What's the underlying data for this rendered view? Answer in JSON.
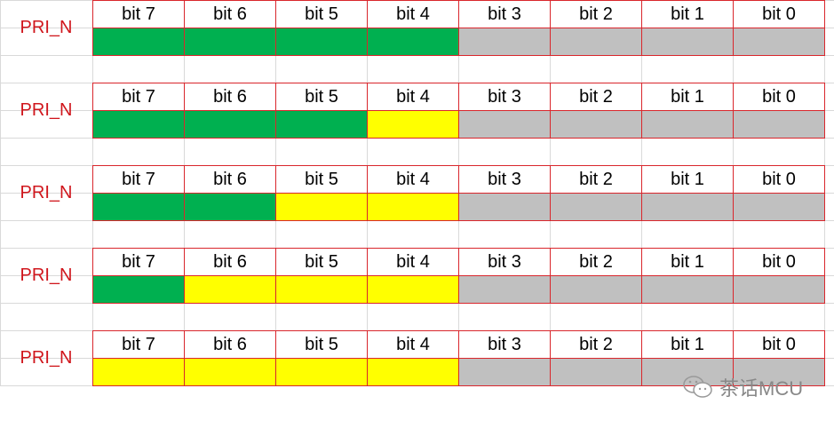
{
  "colors": {
    "green": "#00B050",
    "yellow": "#FFFF00",
    "gray": "#C0C0C0",
    "border": "#D9262C",
    "label": "#D0161C"
  },
  "bit_labels": [
    "bit 7",
    "bit 6",
    "bit 5",
    "bit 4",
    "bit 3",
    "bit 2",
    "bit 1",
    "bit 0"
  ],
  "rows": [
    {
      "label": "PRI_N",
      "fills": [
        "green",
        "green",
        "green",
        "green",
        "gray",
        "gray",
        "gray",
        "gray"
      ]
    },
    {
      "label": "PRI_N",
      "fills": [
        "green",
        "green",
        "green",
        "yellow",
        "gray",
        "gray",
        "gray",
        "gray"
      ]
    },
    {
      "label": "PRI_N",
      "fills": [
        "green",
        "green",
        "yellow",
        "yellow",
        "gray",
        "gray",
        "gray",
        "gray"
      ]
    },
    {
      "label": "PRI_N",
      "fills": [
        "green",
        "yellow",
        "yellow",
        "yellow",
        "gray",
        "gray",
        "gray",
        "gray"
      ]
    },
    {
      "label": "PRI_N",
      "fills": [
        "yellow",
        "yellow",
        "yellow",
        "yellow",
        "gray",
        "gray",
        "gray",
        "gray"
      ]
    }
  ],
  "watermark": {
    "text": "茶话MCU",
    "icon": "wechat-icon"
  }
}
